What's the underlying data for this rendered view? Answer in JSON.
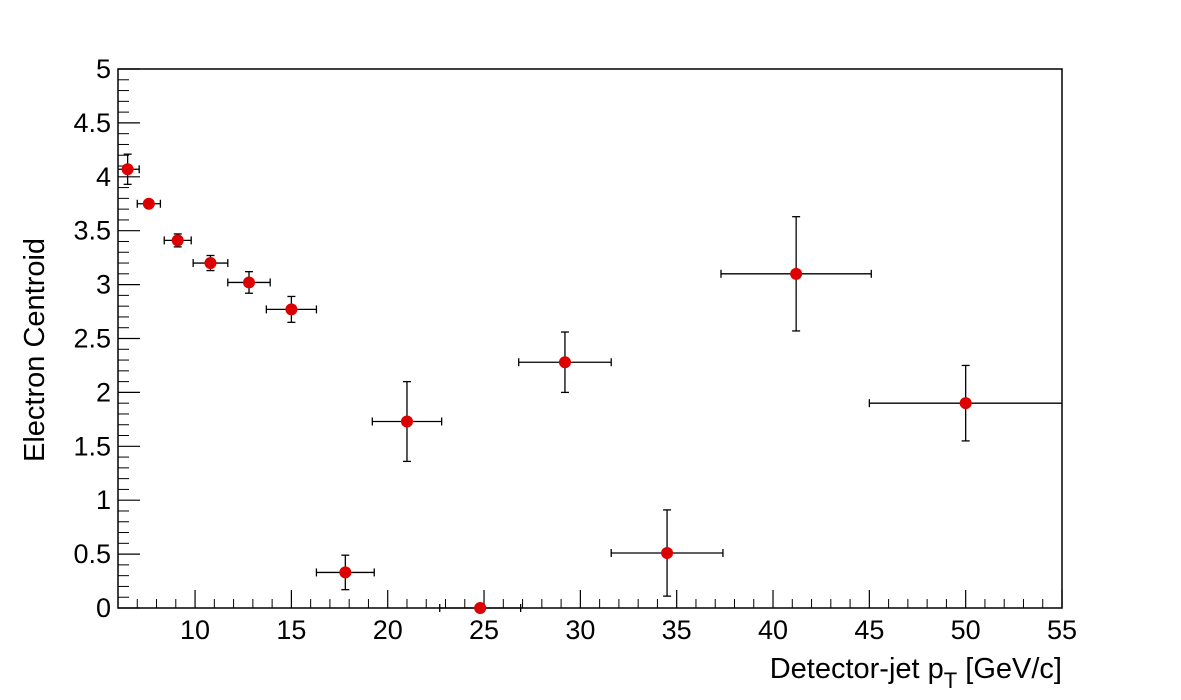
{
  "chart_data": {
    "type": "scatter",
    "title": "",
    "xlabel": "Detector-jet p",
    "xlabel_subscript": "T",
    "xlabel_unit": " [GeV/c]",
    "ylabel": "Electron Centroid",
    "xlim": [
      6,
      55
    ],
    "ylim": [
      0,
      5
    ],
    "x_ticks": [
      10,
      15,
      20,
      25,
      30,
      35,
      40,
      45,
      50,
      55
    ],
    "y_ticks": [
      0,
      0.5,
      1,
      1.5,
      2,
      2.5,
      3,
      3.5,
      4,
      4.5,
      5
    ],
    "y_tick_labels": [
      "0",
      "0.5",
      "1",
      "1.5",
      "2",
      "2.5",
      "3",
      "3.5",
      "4",
      "4.5",
      "5"
    ],
    "grid": false,
    "marker_color": "#dd0000",
    "series": [
      {
        "points": [
          {
            "x": 6.5,
            "y": 4.07,
            "xerr": 0.6,
            "yerr": 0.14
          },
          {
            "x": 7.6,
            "y": 3.75,
            "xerr": 0.6,
            "yerr": 0.03
          },
          {
            "x": 9.1,
            "y": 3.41,
            "xerr": 0.7,
            "yerr": 0.06
          },
          {
            "x": 10.8,
            "y": 3.2,
            "xerr": 0.9,
            "yerr": 0.07
          },
          {
            "x": 12.8,
            "y": 3.02,
            "xerr": 1.1,
            "yerr": 0.1
          },
          {
            "x": 15.0,
            "y": 2.77,
            "xerr": 1.3,
            "yerr": 0.12
          },
          {
            "x": 17.8,
            "y": 0.33,
            "xerr": 1.5,
            "yerr": 0.16
          },
          {
            "x": 21.0,
            "y": 1.73,
            "xerr": 1.8,
            "yerr": 0.37
          },
          {
            "x": 24.8,
            "y": 0.0,
            "xerr": 2.1,
            "yerr": 0.01
          },
          {
            "x": 29.2,
            "y": 2.28,
            "xerr": 2.4,
            "yerr": 0.28
          },
          {
            "x": 34.5,
            "y": 0.51,
            "xerr": 2.9,
            "yerr": 0.4
          },
          {
            "x": 41.2,
            "y": 3.1,
            "xerr": 3.9,
            "yerr": 0.53
          },
          {
            "x": 50.0,
            "y": 1.9,
            "xerr": 5.0,
            "yerr": 0.35
          }
        ]
      }
    ]
  }
}
